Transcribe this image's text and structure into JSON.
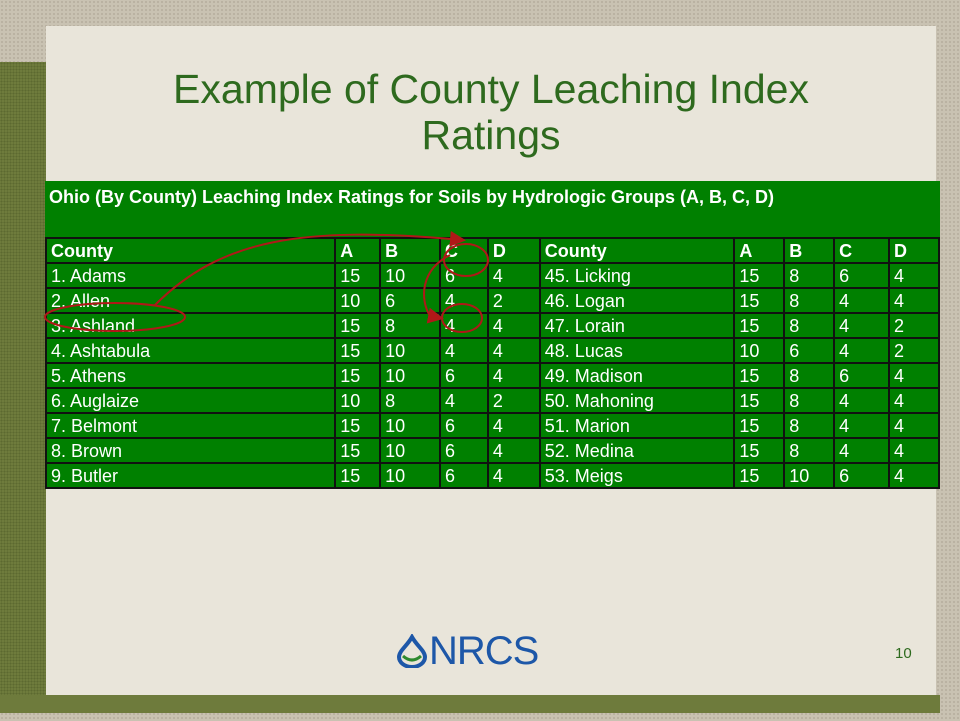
{
  "slide": {
    "title_line1": "Example of County Leaching Index",
    "title_line2": "Ratings",
    "logo": "NRCS",
    "page_number": "10"
  },
  "table": {
    "caption": "Ohio (By County) Leaching Index Ratings for Soils by Hydrologic Groups (A, B, C, D)",
    "header": [
      "County",
      "A",
      "B",
      "C",
      "D",
      "County",
      "A",
      "B",
      "C",
      "D"
    ],
    "rows": [
      [
        "1. Adams",
        15,
        10,
        6,
        4,
        "45. Licking",
        15,
        8,
        6,
        4
      ],
      [
        "2. Allen",
        10,
        6,
        4,
        2,
        "46. Logan",
        15,
        8,
        4,
        4
      ],
      [
        "3. Ashland",
        15,
        8,
        4,
        4,
        "47. Lorain",
        15,
        8,
        4,
        2
      ],
      [
        "4. Ashtabula",
        15,
        10,
        4,
        4,
        "48. Lucas",
        10,
        6,
        4,
        2
      ],
      [
        "5. Athens",
        15,
        10,
        6,
        4,
        "49. Madison",
        15,
        8,
        6,
        4
      ],
      [
        "6. Auglaize",
        10,
        8,
        4,
        2,
        "50. Mahoning",
        15,
        8,
        4,
        4
      ],
      [
        "7. Belmont",
        15,
        10,
        6,
        4,
        "51. Marion",
        15,
        8,
        4,
        4
      ],
      [
        "8. Brown",
        15,
        10,
        6,
        4,
        "52. Medina",
        15,
        8,
        4,
        4
      ],
      [
        "9. Butler",
        15,
        10,
        6,
        4,
        "53. Meigs",
        15,
        10,
        6,
        4
      ]
    ]
  }
}
